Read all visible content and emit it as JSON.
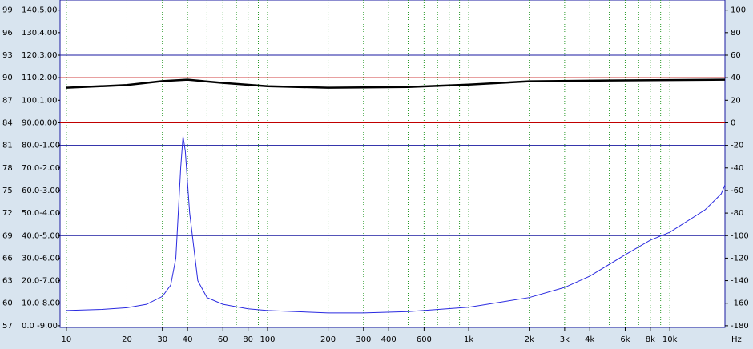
{
  "chart_data": {
    "type": "line",
    "log_x": true,
    "xlim": [
      9.3,
      18800
    ],
    "ylim": [
      -181.5,
      109
    ],
    "y2lim": [
      56.775,
      100.35
    ],
    "xticks": [
      10,
      20,
      30,
      40,
      60,
      80,
      100,
      200,
      300,
      400,
      600,
      {
        "value": 1000,
        "label": "1k"
      },
      {
        "value": 2000,
        "label": "2k"
      },
      {
        "value": 3000,
        "label": "3k"
      },
      {
        "value": 4000,
        "label": "4k"
      },
      {
        "value": 6000,
        "label": "6k"
      },
      {
        "value": 8000,
        "label": "8k"
      },
      {
        "value": 10000,
        "label": "10k"
      }
    ],
    "x_label": "Hz",
    "xgrid": [
      10,
      20,
      30,
      40,
      50,
      60,
      70,
      80,
      90,
      100,
      200,
      300,
      400,
      500,
      600,
      700,
      800,
      900,
      1000,
      2000,
      3000,
      4000,
      5000,
      6000,
      7000,
      8000,
      9000,
      10000
    ],
    "yticks": [
      100,
      80,
      60,
      40,
      20,
      0,
      -20,
      -40,
      -60,
      -80,
      -100,
      -120,
      -140,
      -160,
      -180
    ],
    "y2ticks": [
      99,
      96,
      93,
      90,
      87,
      84,
      81,
      78,
      75,
      72,
      69,
      66,
      63,
      60,
      57
    ],
    "left_labels": [
      "140.5.00",
      "130.4.00",
      "120.3.00",
      "110.2.00",
      "100.1.00",
      "90.00.00",
      "80.0-1.00",
      "70.0-2.00",
      "60.0-3.00",
      "50.0-4.00",
      "40.0-5.00",
      "30.0-6.00",
      "20.0-7.00",
      "10.0-8.00",
      "0.0 -9.00"
    ],
    "hlines": [
      {
        "value": 60,
        "color": "#1a1aa0"
      },
      {
        "value": -20,
        "color": "#1a1aa0"
      },
      {
        "value": -100,
        "color": "#1a1aa0"
      },
      {
        "value": 40,
        "color": "#c00000"
      },
      {
        "value": 0,
        "color": "#c00000"
      }
    ],
    "series": [
      {
        "color": "#000000",
        "width": 2.5,
        "x": [
          10,
          20,
          30,
          40,
          60,
          100,
          200,
          500,
          1000,
          2000,
          5000,
          18800
        ],
        "values": [
          31.1,
          33.5,
          37,
          38.2,
          35.4,
          32.5,
          31.1,
          31.8,
          33.9,
          36.8,
          37.5,
          38.2
        ]
      },
      {
        "color": "#2a2ae0",
        "width": 1,
        "x": [
          10,
          15,
          20,
          25,
          30,
          33,
          35,
          37,
          38,
          39,
          41,
          45,
          50,
          60,
          80,
          100,
          200,
          300,
          500,
          1000,
          2000,
          3000,
          4000,
          6000,
          8000,
          10000,
          15000,
          18000,
          18800
        ],
        "values": [
          -166.5,
          -165.5,
          -164,
          -161,
          -154,
          -144,
          -120,
          -40,
          -12,
          -25,
          -80,
          -140,
          -155,
          -161,
          -165,
          -166.5,
          -168.6,
          -168.6,
          -167.5,
          -163.6,
          -155,
          -146,
          -136,
          -117,
          -104,
          -97,
          -77,
          -63,
          -55
        ]
      }
    ]
  }
}
